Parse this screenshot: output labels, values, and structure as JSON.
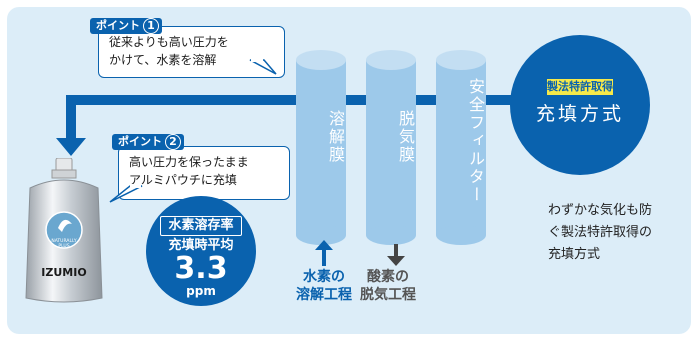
{
  "point1": {
    "badge": "ポイント",
    "number": "1",
    "text_line1": "従来よりも高い圧力を",
    "text_line2": "かけて、水素を溶解"
  },
  "point2": {
    "badge": "ポイント",
    "number": "2",
    "text_line1": "高い圧力を保ったまま",
    "text_line2": "アルミパウチに充填"
  },
  "hydrogen_rate": {
    "title": "水素溶存率",
    "subtitle": "充填時平均",
    "value": "3.3",
    "unit": "ppm"
  },
  "cylinders": [
    {
      "label": "溶解膜"
    },
    {
      "label": "脱気膜"
    },
    {
      "label": "安全フィルター"
    }
  ],
  "process_labels": {
    "dissolve_line1": "水素の",
    "dissolve_line2": "溶解工程",
    "degas_line1": "酸素の",
    "degas_line2": "脱気工程"
  },
  "patent_circle": {
    "tag": "製法特許取得",
    "title": "充填方式"
  },
  "description": {
    "line1": "わずかな気化も防",
    "line2": "ぐ製法特許取得の",
    "line3": "充填方式"
  },
  "pouch": {
    "brand": "IZUMIO",
    "emblem_line1": "NATURALLY",
    "emblem_line2": "PLUS"
  },
  "colors": {
    "panel": "#dcedf8",
    "accent": "#0a62ae",
    "pipe": "#0a62ae",
    "cylinder": "#9dc9ea",
    "tag": "#f6e94a"
  }
}
